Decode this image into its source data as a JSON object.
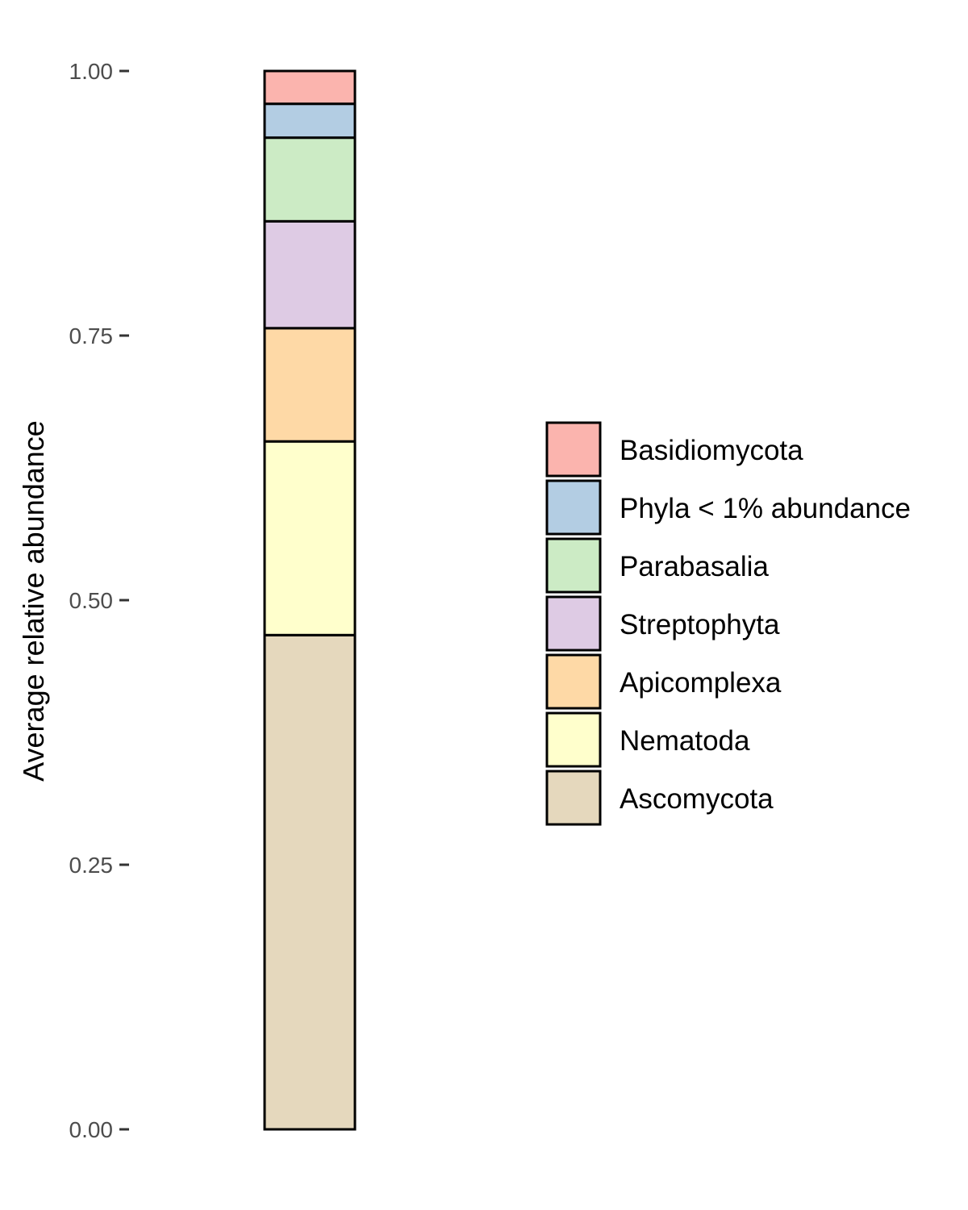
{
  "chart_data": {
    "type": "bar",
    "stacked": true,
    "ylabel": "Average relative abundance",
    "ylim": [
      0,
      1
    ],
    "yticks": [
      "0.00",
      "0.25",
      "0.50",
      "0.75",
      "1.00"
    ],
    "ytick_values": [
      0,
      0.25,
      0.5,
      0.75,
      1.0
    ],
    "grid": false,
    "legend_position": "right",
    "series": [
      {
        "name": "Ascomycota",
        "value": 0.467,
        "color": "#E5D8BD"
      },
      {
        "name": "Nematoda",
        "value": 0.183,
        "color": "#FFFFCC"
      },
      {
        "name": "Apicomplexa",
        "value": 0.107,
        "color": "#FED9A6"
      },
      {
        "name": "Streptophyta",
        "value": 0.101,
        "color": "#DECBE4"
      },
      {
        "name": "Parabasalia",
        "value": 0.079,
        "color": "#CCEBC5"
      },
      {
        "name": "Phyla < 1% abundance",
        "value": 0.032,
        "color": "#B3CDE3"
      },
      {
        "name": "Basidiomycota",
        "value": 0.031,
        "color": "#FBB4AE"
      }
    ],
    "legend_order": [
      "Basidiomycota",
      "Phyla < 1% abundance",
      "Parabasalia",
      "Streptophyta",
      "Apicomplexa",
      "Nematoda",
      "Ascomycota"
    ]
  }
}
